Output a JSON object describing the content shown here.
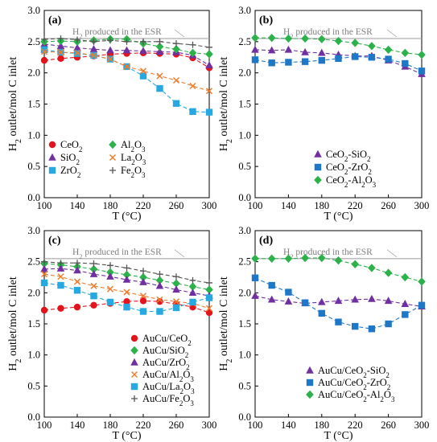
{
  "figure": {
    "background": "#ffffff"
  },
  "chart_data": [
    {
      "panel": "(a)",
      "type": "scatter",
      "xlabel": "T (°C)",
      "ylabel": "H2 outlet/mol C inlet",
      "xlim": [
        100,
        300
      ],
      "ylim": [
        0,
        3.0
      ],
      "xticks": [
        100,
        140,
        180,
        220,
        260,
        300
      ],
      "yticks": [
        0.0,
        0.5,
        1.0,
        1.5,
        2.0,
        2.5,
        3.0
      ],
      "reference_line": {
        "label": "H2 produced in the ESR",
        "value": 2.55,
        "color": "#a6a6a6"
      },
      "legend_position": "bottom-left",
      "legend_columns": 2,
      "series": [
        {
          "name": "CeO2",
          "marker": "circle",
          "color": "#e3141c",
          "x": [
            100,
            120,
            140,
            160,
            180,
            200,
            220,
            240,
            260,
            280,
            300
          ],
          "y": [
            2.2,
            2.23,
            2.25,
            2.27,
            2.3,
            2.31,
            2.32,
            2.31,
            2.3,
            2.24,
            2.08
          ]
        },
        {
          "name": "SiO2",
          "marker": "triangle",
          "color": "#7030a0",
          "x": [
            100,
            120,
            140,
            160,
            180,
            200,
            220,
            240,
            260,
            280,
            300
          ],
          "y": [
            2.46,
            2.43,
            2.4,
            2.38,
            2.36,
            2.36,
            2.35,
            2.34,
            2.33,
            2.28,
            2.12
          ]
        },
        {
          "name": "ZrO2",
          "marker": "square",
          "color": "#26a9e0",
          "x": [
            100,
            120,
            140,
            160,
            180,
            200,
            220,
            240,
            260,
            280,
            300
          ],
          "y": [
            2.37,
            2.33,
            2.31,
            2.28,
            2.22,
            2.1,
            1.95,
            1.75,
            1.51,
            1.38,
            1.37
          ]
        },
        {
          "name": "Al2O3",
          "marker": "diamond",
          "color": "#2db14a",
          "x": [
            100,
            120,
            140,
            160,
            180,
            200,
            220,
            240,
            260,
            280,
            300
          ],
          "y": [
            2.5,
            2.51,
            2.5,
            2.52,
            2.54,
            2.54,
            2.47,
            2.42,
            2.38,
            2.32,
            2.3
          ]
        },
        {
          "name": "La2O3",
          "marker": "x",
          "color": "#ed7d31",
          "x": [
            100,
            120,
            140,
            160,
            180,
            200,
            220,
            240,
            260,
            280,
            300
          ],
          "y": [
            2.34,
            2.33,
            2.32,
            2.28,
            2.22,
            2.1,
            2.03,
            1.95,
            1.88,
            1.79,
            1.71
          ]
        },
        {
          "name": "Fe2O3",
          "marker": "plus",
          "color": "#555555",
          "x": [
            100,
            120,
            140,
            160,
            180,
            200,
            220,
            240,
            260,
            280,
            300
          ],
          "y": [
            2.54,
            2.55,
            2.53,
            2.5,
            2.52,
            2.5,
            2.5,
            2.5,
            2.47,
            2.45,
            2.41
          ]
        }
      ]
    },
    {
      "panel": "(b)",
      "type": "scatter",
      "xlabel": "T (°C)",
      "ylabel": "H2 outlet/mol C inlet",
      "xlim": [
        100,
        300
      ],
      "ylim": [
        0,
        3.0
      ],
      "xticks": [
        100,
        140,
        180,
        220,
        260,
        300
      ],
      "yticks": [
        0.0,
        0.5,
        1.0,
        1.5,
        2.0,
        2.5,
        3.0
      ],
      "reference_line": {
        "label": "H2 produced in the ESR",
        "value": 2.55,
        "color": "#a6a6a6"
      },
      "legend_position": "bottom-right",
      "legend_columns": 1,
      "series": [
        {
          "name": "CeO2-SiO2",
          "marker": "triangle",
          "color": "#7030a0",
          "x": [
            100,
            120,
            140,
            160,
            180,
            200,
            220,
            240,
            260,
            280,
            300
          ],
          "y": [
            2.37,
            2.36,
            2.37,
            2.33,
            2.32,
            2.29,
            2.27,
            2.27,
            2.2,
            2.1,
            1.98
          ]
        },
        {
          "name": "CeO2-ZrO2",
          "marker": "square",
          "color": "#1f77c8",
          "x": [
            100,
            120,
            140,
            160,
            180,
            200,
            220,
            240,
            260,
            280,
            300
          ],
          "y": [
            2.21,
            2.16,
            2.17,
            2.18,
            2.2,
            2.23,
            2.26,
            2.25,
            2.22,
            2.15,
            2.03
          ]
        },
        {
          "name": "CeO2-Al2O3",
          "marker": "diamond",
          "color": "#2db14a",
          "x": [
            100,
            120,
            140,
            160,
            180,
            200,
            220,
            240,
            260,
            280,
            300
          ],
          "y": [
            2.56,
            2.56,
            2.55,
            2.55,
            2.54,
            2.51,
            2.48,
            2.43,
            2.37,
            2.32,
            2.29
          ]
        }
      ]
    },
    {
      "panel": "(c)",
      "type": "scatter",
      "xlabel": "T (°C)",
      "ylabel": "H2 outlet/mol C inlet",
      "xlim": [
        100,
        300
      ],
      "ylim": [
        0,
        3.0
      ],
      "xticks": [
        100,
        140,
        180,
        220,
        260,
        300
      ],
      "yticks": [
        0.0,
        0.5,
        1.0,
        1.5,
        2.0,
        2.5,
        3.0
      ],
      "reference_line": {
        "label": "H2 produced in the ESR",
        "value": 2.55,
        "color": "#a6a6a6"
      },
      "legend_position": "bottom-right",
      "legend_columns": 1,
      "series": [
        {
          "name": "AuCu/CeO2",
          "marker": "circle",
          "color": "#e3141c",
          "x": [
            100,
            120,
            140,
            160,
            180,
            200,
            220,
            240,
            260,
            280,
            300
          ],
          "y": [
            1.72,
            1.75,
            1.77,
            1.8,
            1.83,
            1.86,
            1.87,
            1.86,
            1.82,
            1.77,
            1.68
          ]
        },
        {
          "name": "AuCu/SiO2",
          "marker": "diamond",
          "color": "#2db14a",
          "x": [
            100,
            120,
            140,
            160,
            180,
            200,
            220,
            240,
            260,
            280,
            300
          ],
          "y": [
            2.47,
            2.45,
            2.42,
            2.38,
            2.33,
            2.29,
            2.25,
            2.2,
            2.15,
            2.1,
            2.05
          ]
        },
        {
          "name": "AuCu/ZrO2",
          "marker": "triangle",
          "color": "#7030a0",
          "x": [
            100,
            120,
            140,
            160,
            180,
            200,
            220,
            240,
            260,
            280,
            300
          ],
          "y": [
            2.38,
            2.39,
            2.36,
            2.3,
            2.26,
            2.21,
            2.17,
            2.11,
            2.05,
            2.0,
            1.95
          ]
        },
        {
          "name": "AuCu/Al2O3",
          "marker": "x",
          "color": "#ed7d31",
          "x": [
            100,
            120,
            140,
            160,
            180,
            200,
            220,
            240,
            260,
            280,
            300
          ],
          "y": [
            2.3,
            2.26,
            2.18,
            2.11,
            2.06,
            2.01,
            1.95,
            1.89,
            1.86,
            1.83,
            1.75
          ]
        },
        {
          "name": "AuCu/La2O3",
          "marker": "square",
          "color": "#26a9e0",
          "x": [
            100,
            120,
            140,
            160,
            180,
            200,
            220,
            240,
            260,
            280,
            300
          ],
          "y": [
            2.16,
            2.12,
            2.04,
            1.95,
            1.85,
            1.77,
            1.7,
            1.7,
            1.76,
            1.85,
            1.92
          ]
        },
        {
          "name": "AuCu/Fe2O3",
          "marker": "plus",
          "color": "#555555",
          "x": [
            100,
            120,
            140,
            160,
            180,
            200,
            220,
            240,
            260,
            280,
            300
          ],
          "y": [
            2.5,
            2.48,
            2.48,
            2.47,
            2.44,
            2.4,
            2.35,
            2.3,
            2.26,
            2.2,
            2.16
          ]
        }
      ]
    },
    {
      "panel": "(d)",
      "type": "scatter",
      "xlabel": "T (°C)",
      "ylabel": "H2 outlet/mol C inlet",
      "xlim": [
        100,
        300
      ],
      "ylim": [
        0,
        3.0
      ],
      "xticks": [
        100,
        140,
        180,
        220,
        260,
        300
      ],
      "yticks": [
        0.0,
        0.5,
        1.0,
        1.5,
        2.0,
        2.5,
        3.0
      ],
      "reference_line": {
        "label": "H2 produced in the ESR",
        "value": 2.55,
        "color": "#a6a6a6"
      },
      "legend_position": "bottom-right",
      "legend_columns": 1,
      "series": [
        {
          "name": "AuCu/CeO2-SiO2",
          "marker": "triangle",
          "color": "#7030a0",
          "x": [
            100,
            120,
            140,
            160,
            180,
            200,
            220,
            240,
            260,
            280,
            300
          ],
          "y": [
            1.95,
            1.89,
            1.86,
            1.83,
            1.85,
            1.87,
            1.89,
            1.9,
            1.87,
            1.82,
            1.78
          ]
        },
        {
          "name": "AuCu/CeO2-ZrO2",
          "marker": "square",
          "color": "#1f77c8",
          "x": [
            100,
            120,
            140,
            160,
            180,
            200,
            220,
            240,
            260,
            280,
            300
          ],
          "y": [
            2.24,
            2.12,
            2.01,
            1.84,
            1.67,
            1.53,
            1.46,
            1.42,
            1.5,
            1.65,
            1.8
          ]
        },
        {
          "name": "AuCu/CeO2-Al2O3",
          "marker": "diamond",
          "color": "#2db14a",
          "x": [
            100,
            120,
            140,
            160,
            180,
            200,
            220,
            240,
            260,
            280,
            300
          ],
          "y": [
            2.55,
            2.55,
            2.55,
            2.56,
            2.56,
            2.52,
            2.46,
            2.4,
            2.32,
            2.25,
            2.18
          ]
        }
      ]
    }
  ]
}
